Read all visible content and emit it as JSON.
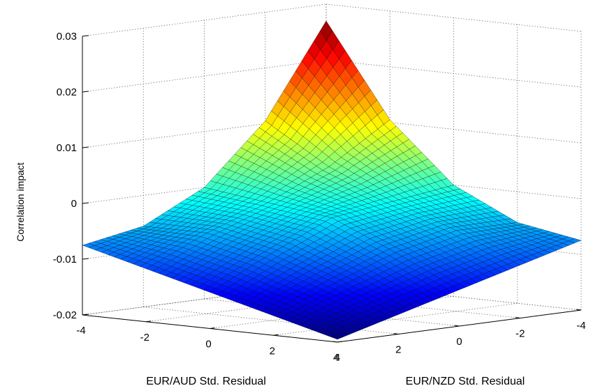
{
  "chart_data": {
    "type": "surface",
    "title": "",
    "xlabel": "EUR/AUD Std. Residual",
    "ylabel": "EUR/NZD Std. Residual",
    "zlabel": "Correlation impact",
    "x_range": [
      -4,
      4
    ],
    "y_range": [
      -4,
      4
    ],
    "z_range": [
      -0.02,
      0.03
    ],
    "x_ticks": [
      "-4",
      "-2",
      "0",
      "2",
      "4"
    ],
    "y_ticks": [
      "-4",
      "-2",
      "0",
      "2",
      "4"
    ],
    "z_ticks": [
      "-0.02",
      "-0.01",
      "0",
      "0.01",
      "0.02",
      "0.03"
    ],
    "grid": true,
    "colormap": "jet",
    "surface": {
      "x_values": [
        -4,
        -2,
        0,
        2,
        4
      ],
      "y_values": [
        -4,
        -2,
        0,
        2,
        4
      ],
      "z_values": [
        [
          0.027,
          0.0105,
          0.0,
          -0.0055,
          -0.0075
        ],
        [
          0.0105,
          0.0035,
          -0.0015,
          -0.0055,
          -0.0105
        ],
        [
          0.0,
          -0.0015,
          -0.003,
          -0.008,
          -0.0135
        ],
        [
          -0.0055,
          -0.0055,
          -0.008,
          -0.012,
          -0.0165
        ],
        [
          -0.0075,
          -0.0105,
          -0.0135,
          -0.0165,
          -0.0195
        ]
      ]
    }
  }
}
